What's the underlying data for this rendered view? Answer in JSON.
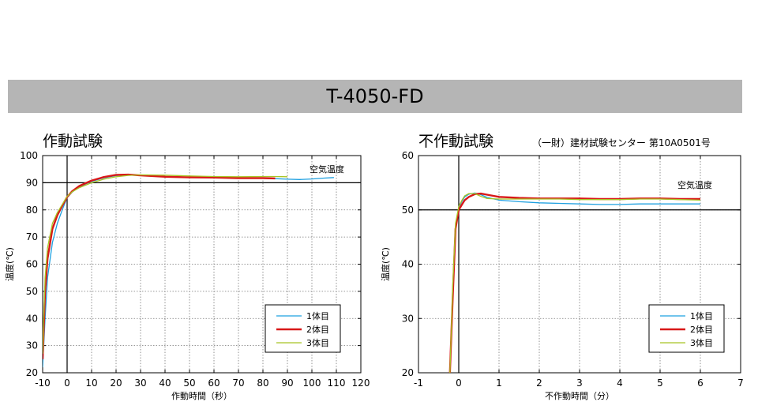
{
  "banner_title": "T-4050-FD",
  "chart_data": [
    {
      "type": "line",
      "title": "作動試験",
      "subtitle": "",
      "xlabel": "作動時間（秒）",
      "ylabel": "温度(℃)",
      "xlim": [
        -10,
        120
      ],
      "ylim": [
        20,
        100
      ],
      "xticks": [
        -10,
        0,
        10,
        20,
        30,
        40,
        50,
        60,
        70,
        80,
        90,
        100,
        110,
        120
      ],
      "yticks": [
        20,
        30,
        40,
        50,
        60,
        70,
        80,
        90,
        100
      ],
      "grid": true,
      "reference_line": {
        "y": 90,
        "label": "空気温度"
      },
      "legend_position": "bottom-right",
      "series": [
        {
          "name": "1体目",
          "color": "#1fa0e0",
          "x": [
            -10,
            -9,
            -8,
            -6,
            -4,
            -2,
            0,
            2,
            5,
            10,
            15,
            20,
            25,
            30,
            40,
            50,
            60,
            70,
            80,
            85,
            90,
            95,
            100,
            105,
            109
          ],
          "y": [
            22,
            40,
            55,
            68,
            75,
            80,
            84.5,
            86.5,
            88.5,
            90.5,
            91.8,
            92.6,
            92.9,
            92.8,
            92.3,
            92,
            91.9,
            91.8,
            91.6,
            91.5,
            91.3,
            91.2,
            91.4,
            91.7,
            91.9
          ]
        },
        {
          "name": "2体目",
          "color": "#d81818",
          "x": [
            -10,
            -9,
            -8,
            -6,
            -4,
            -2,
            0,
            2,
            5,
            10,
            15,
            20,
            25,
            30,
            40,
            50,
            60,
            70,
            80,
            85
          ],
          "y": [
            25,
            50,
            62,
            73,
            78,
            81.5,
            84.8,
            86.8,
            88.8,
            90.8,
            92.1,
            92.9,
            93,
            92.7,
            92.2,
            92,
            91.9,
            91.7,
            91.7,
            91.6
          ]
        },
        {
          "name": "3体目",
          "color": "#a8c424",
          "x": [
            -10,
            -9,
            -8,
            -6,
            -4,
            -2,
            0,
            2,
            5,
            10,
            15,
            20,
            25,
            30,
            40,
            50,
            60,
            70,
            80,
            85,
            90
          ],
          "y": [
            27,
            55,
            66,
            75,
            79,
            82,
            85,
            86.6,
            88.2,
            90,
            91.3,
            92.2,
            92.7,
            92.9,
            92.8,
            92.5,
            92.3,
            92.2,
            92.3,
            92.3,
            92.2
          ]
        }
      ]
    },
    {
      "type": "line",
      "title": "不作動試験",
      "subtitle": "（一財）建材試験センター 第10A0501号",
      "xlabel": "不作動時間（分）",
      "ylabel": "温度(℃)",
      "xlim": [
        -1,
        7
      ],
      "ylim": [
        20,
        60
      ],
      "xticks": [
        -1,
        0,
        1,
        2,
        3,
        4,
        5,
        6,
        7
      ],
      "yticks": [
        20,
        30,
        40,
        50,
        60
      ],
      "grid": true,
      "reference_line": {
        "y": 50,
        "label": "空気温度"
      },
      "legend_position": "bottom-right",
      "series": [
        {
          "name": "1体目",
          "color": "#1fa0e0",
          "x": [
            -0.22,
            -0.15,
            -0.08,
            0,
            0.08,
            0.15,
            0.25,
            0.4,
            0.55,
            0.7,
            1,
            1.5,
            2,
            2.5,
            3,
            3.5,
            4,
            4.5,
            5,
            5.5,
            6
          ],
          "y": [
            20,
            35,
            47,
            50.4,
            51.6,
            52.4,
            52.9,
            53.1,
            52.8,
            52.3,
            51.8,
            51.5,
            51.3,
            51.2,
            51.1,
            51,
            51,
            51.1,
            51.1,
            51.1,
            51.1
          ]
        },
        {
          "name": "2体目",
          "color": "#d81818",
          "x": [
            -0.22,
            -0.15,
            -0.08,
            0,
            0.08,
            0.15,
            0.25,
            0.4,
            0.55,
            0.7,
            1,
            1.5,
            2,
            2.5,
            3,
            3.5,
            4,
            4.5,
            5,
            5.5,
            6
          ],
          "y": [
            20,
            34,
            46.5,
            50,
            51,
            51.8,
            52.4,
            52.9,
            53,
            52.8,
            52.4,
            52.2,
            52.1,
            52.1,
            52.1,
            52,
            52,
            52.1,
            52.1,
            52,
            52
          ]
        },
        {
          "name": "3体目",
          "color": "#a8c424",
          "x": [
            -0.22,
            -0.15,
            -0.08,
            0,
            0.08,
            0.15,
            0.25,
            0.4,
            0.55,
            0.7,
            1,
            1.5,
            2,
            2.5,
            3,
            3.5,
            4,
            4.5,
            5,
            5.5,
            6
          ],
          "y": [
            20,
            36,
            47.5,
            50.6,
            51.8,
            52.6,
            53,
            53,
            52.5,
            52.1,
            52,
            52,
            52,
            52,
            51.9,
            51.9,
            51.9,
            52,
            52,
            51.9,
            51.8
          ]
        }
      ]
    }
  ]
}
